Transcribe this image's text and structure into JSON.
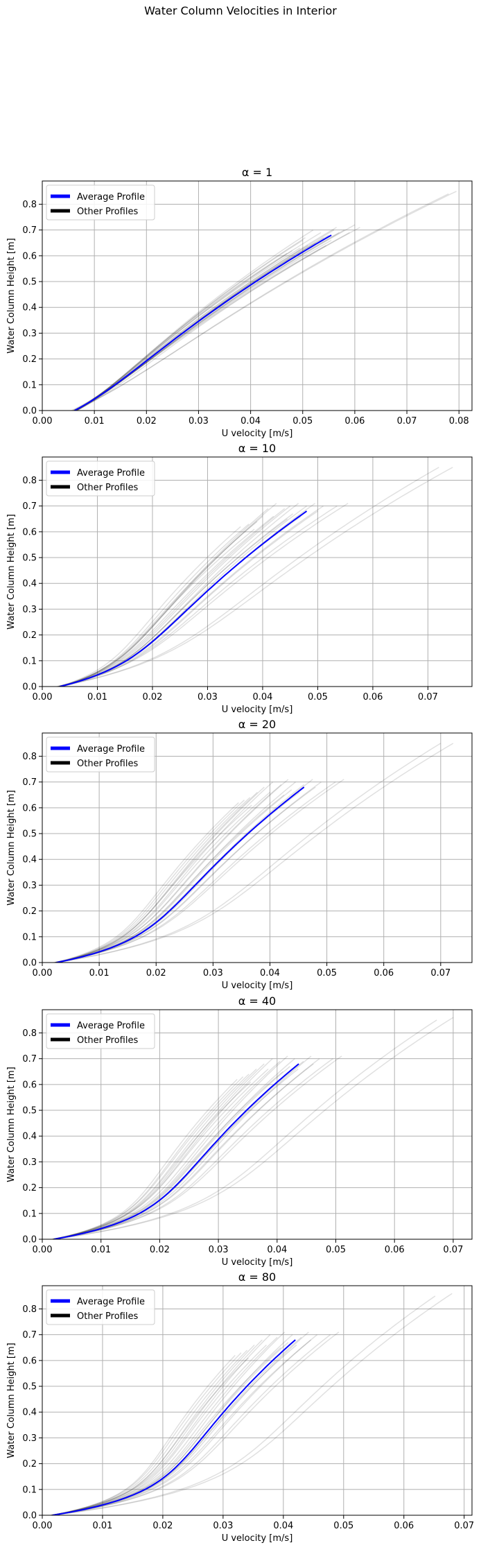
{
  "figure": {
    "suptitle": "Water Column Velocities in Interior"
  },
  "colors": {
    "average": "#0000ff",
    "other": "#000000",
    "other_alpha": 0.12,
    "grid": "#b0b0b0"
  },
  "chart_data": [
    {
      "type": "line",
      "title": "α = 1",
      "xlabel": "U velocity [m/s]",
      "ylabel": "Water Column Height [m]",
      "xlim": [
        0,
        0.0825
      ],
      "ylim": [
        0,
        0.89
      ],
      "xticks": [
        "0.00",
        "0.01",
        "0.02",
        "0.03",
        "0.04",
        "0.05",
        "0.06",
        "0.07",
        "0.08"
      ],
      "yticks": [
        "0.0",
        "0.1",
        "0.2",
        "0.3",
        "0.4",
        "0.5",
        "0.6",
        "0.7",
        "0.8"
      ],
      "grid": true,
      "legend": {
        "position": "upper-left",
        "entries": [
          "Average Profile",
          "Other Profiles"
        ]
      },
      "average_profile": {
        "name": "Average Profile",
        "bottom_velocity": 0.0062,
        "top_velocity": 0.0555,
        "top_height": 0.68,
        "shape": 0.2
      },
      "other_profiles": [
        {
          "bottom_velocity": 0.0058,
          "top_velocity": 0.0795,
          "top_height": 0.85
        },
        {
          "bottom_velocity": 0.006,
          "top_velocity": 0.078,
          "top_height": 0.84
        },
        {
          "bottom_velocity": 0.0056,
          "top_velocity": 0.061,
          "top_height": 0.71
        },
        {
          "bottom_velocity": 0.006,
          "top_velocity": 0.06,
          "top_height": 0.72
        },
        {
          "bottom_velocity": 0.0062,
          "top_velocity": 0.058,
          "top_height": 0.7
        },
        {
          "bottom_velocity": 0.0064,
          "top_velocity": 0.057,
          "top_height": 0.69
        },
        {
          "bottom_velocity": 0.0066,
          "top_velocity": 0.056,
          "top_height": 0.7
        },
        {
          "bottom_velocity": 0.0062,
          "top_velocity": 0.055,
          "top_height": 0.68
        },
        {
          "bottom_velocity": 0.0064,
          "top_velocity": 0.054,
          "top_height": 0.67
        },
        {
          "bottom_velocity": 0.0066,
          "top_velocity": 0.0525,
          "top_height": 0.65
        },
        {
          "bottom_velocity": 0.0064,
          "top_velocity": 0.051,
          "top_height": 0.64
        },
        {
          "bottom_velocity": 0.0062,
          "top_velocity": 0.0495,
          "top_height": 0.63
        },
        {
          "bottom_velocity": 0.0066,
          "top_velocity": 0.048,
          "top_height": 0.62
        },
        {
          "bottom_velocity": 0.0064,
          "top_velocity": 0.047,
          "top_height": 0.61
        },
        {
          "bottom_velocity": 0.0062,
          "top_velocity": 0.0555,
          "top_height": 0.66
        },
        {
          "bottom_velocity": 0.006,
          "top_velocity": 0.0565,
          "top_height": 0.71
        },
        {
          "bottom_velocity": 0.0062,
          "top_velocity": 0.0535,
          "top_height": 0.69
        },
        {
          "bottom_velocity": 0.0064,
          "top_velocity": 0.05,
          "top_height": 0.66
        },
        {
          "bottom_velocity": 0.0066,
          "top_velocity": 0.059,
          "top_height": 0.69
        },
        {
          "bottom_velocity": 0.0062,
          "top_velocity": 0.0545,
          "top_height": 0.64
        },
        {
          "bottom_velocity": 0.0064,
          "top_velocity": 0.052,
          "top_height": 0.7
        },
        {
          "bottom_velocity": 0.0066,
          "top_velocity": 0.0505,
          "top_height": 0.67
        }
      ]
    },
    {
      "type": "line",
      "title": "α = 10",
      "xlabel": "U velocity [m/s]",
      "ylabel": "Water Column Height [m]",
      "xlim": [
        0,
        0.078
      ],
      "ylim": [
        0,
        0.89
      ],
      "xticks": [
        "0.00",
        "0.01",
        "0.02",
        "0.03",
        "0.04",
        "0.05",
        "0.06",
        "0.07"
      ],
      "yticks": [
        "0.0",
        "0.1",
        "0.2",
        "0.3",
        "0.4",
        "0.5",
        "0.6",
        "0.7",
        "0.8"
      ],
      "grid": true,
      "legend": {
        "position": "upper-left",
        "entries": [
          "Average Profile",
          "Other Profiles"
        ]
      },
      "average_profile": {
        "name": "Average Profile",
        "bottom_velocity": 0.0032,
        "top_velocity": 0.048,
        "top_height": 0.68,
        "shape": 0.9
      },
      "other_profiles": [
        {
          "bottom_velocity": 0.0028,
          "top_velocity": 0.0745,
          "top_height": 0.85
        },
        {
          "bottom_velocity": 0.003,
          "top_velocity": 0.072,
          "top_height": 0.85
        },
        {
          "bottom_velocity": 0.0026,
          "top_velocity": 0.0555,
          "top_height": 0.71
        },
        {
          "bottom_velocity": 0.0028,
          "top_velocity": 0.0535,
          "top_height": 0.7
        },
        {
          "bottom_velocity": 0.003,
          "top_velocity": 0.051,
          "top_height": 0.7
        },
        {
          "bottom_velocity": 0.0032,
          "top_velocity": 0.0495,
          "top_height": 0.71
        },
        {
          "bottom_velocity": 0.0034,
          "top_velocity": 0.048,
          "top_height": 0.7
        },
        {
          "bottom_velocity": 0.0036,
          "top_velocity": 0.0465,
          "top_height": 0.71
        },
        {
          "bottom_velocity": 0.0034,
          "top_velocity": 0.045,
          "top_height": 0.7
        },
        {
          "bottom_velocity": 0.0032,
          "top_velocity": 0.044,
          "top_height": 0.69
        },
        {
          "bottom_velocity": 0.003,
          "top_velocity": 0.0425,
          "top_height": 0.71
        },
        {
          "bottom_velocity": 0.0034,
          "top_velocity": 0.041,
          "top_height": 0.69
        },
        {
          "bottom_velocity": 0.0036,
          "top_velocity": 0.04,
          "top_height": 0.66
        },
        {
          "bottom_velocity": 0.0032,
          "top_velocity": 0.039,
          "top_height": 0.64
        },
        {
          "bottom_velocity": 0.0034,
          "top_velocity": 0.0375,
          "top_height": 0.63
        },
        {
          "bottom_velocity": 0.003,
          "top_velocity": 0.036,
          "top_height": 0.62
        },
        {
          "bottom_velocity": 0.0032,
          "top_velocity": 0.042,
          "top_height": 0.66
        },
        {
          "bottom_velocity": 0.0034,
          "top_velocity": 0.0455,
          "top_height": 0.67
        },
        {
          "bottom_velocity": 0.0036,
          "top_velocity": 0.05,
          "top_height": 0.68
        },
        {
          "bottom_velocity": 0.003,
          "top_velocity": 0.047,
          "top_height": 0.66
        },
        {
          "bottom_velocity": 0.0032,
          "top_velocity": 0.0385,
          "top_height": 0.61
        },
        {
          "bottom_velocity": 0.0034,
          "top_velocity": 0.0445,
          "top_height": 0.65
        }
      ]
    },
    {
      "type": "line",
      "title": "α = 20",
      "xlabel": "U velocity [m/s]",
      "ylabel": "Water Column Height [m]",
      "xlim": [
        0,
        0.0755
      ],
      "ylim": [
        0,
        0.89
      ],
      "xticks": [
        "0.00",
        "0.01",
        "0.02",
        "0.03",
        "0.04",
        "0.05",
        "0.06",
        "0.07"
      ],
      "yticks": [
        "0.0",
        "0.1",
        "0.2",
        "0.3",
        "0.4",
        "0.5",
        "0.6",
        "0.7",
        "0.8"
      ],
      "grid": true,
      "legend": {
        "position": "upper-left",
        "entries": [
          "Average Profile",
          "Other Profiles"
        ]
      },
      "average_profile": {
        "name": "Average Profile",
        "bottom_velocity": 0.0025,
        "top_velocity": 0.046,
        "top_height": 0.68,
        "shape": 1.2
      },
      "other_profiles": [
        {
          "bottom_velocity": 0.0022,
          "top_velocity": 0.0722,
          "top_height": 0.85
        },
        {
          "bottom_velocity": 0.0024,
          "top_velocity": 0.07,
          "top_height": 0.85
        },
        {
          "bottom_velocity": 0.002,
          "top_velocity": 0.053,
          "top_height": 0.71
        },
        {
          "bottom_velocity": 0.0022,
          "top_velocity": 0.0515,
          "top_height": 0.7
        },
        {
          "bottom_velocity": 0.0024,
          "top_velocity": 0.049,
          "top_height": 0.7
        },
        {
          "bottom_velocity": 0.0026,
          "top_velocity": 0.0475,
          "top_height": 0.71
        },
        {
          "bottom_velocity": 0.0028,
          "top_velocity": 0.046,
          "top_height": 0.69
        },
        {
          "bottom_velocity": 0.0026,
          "top_velocity": 0.0445,
          "top_height": 0.7
        },
        {
          "bottom_velocity": 0.0024,
          "top_velocity": 0.0432,
          "top_height": 0.71
        },
        {
          "bottom_velocity": 0.0028,
          "top_velocity": 0.042,
          "top_height": 0.69
        },
        {
          "bottom_velocity": 0.0026,
          "top_velocity": 0.0405,
          "top_height": 0.7
        },
        {
          "bottom_velocity": 0.0024,
          "top_velocity": 0.039,
          "top_height": 0.68
        },
        {
          "bottom_velocity": 0.0028,
          "top_velocity": 0.0378,
          "top_height": 0.66
        },
        {
          "bottom_velocity": 0.0026,
          "top_velocity": 0.0365,
          "top_height": 0.64
        },
        {
          "bottom_velocity": 0.0024,
          "top_velocity": 0.0355,
          "top_height": 0.63
        },
        {
          "bottom_velocity": 0.0022,
          "top_velocity": 0.0345,
          "top_height": 0.62
        },
        {
          "bottom_velocity": 0.0026,
          "top_velocity": 0.04,
          "top_height": 0.66
        },
        {
          "bottom_velocity": 0.0028,
          "top_velocity": 0.0438,
          "top_height": 0.67
        },
        {
          "bottom_velocity": 0.0024,
          "top_velocity": 0.048,
          "top_height": 0.68
        },
        {
          "bottom_velocity": 0.0022,
          "top_velocity": 0.0452,
          "top_height": 0.66
        },
        {
          "bottom_velocity": 0.0026,
          "top_velocity": 0.0368,
          "top_height": 0.61
        },
        {
          "bottom_velocity": 0.0028,
          "top_velocity": 0.0425,
          "top_height": 0.65
        }
      ]
    },
    {
      "type": "line",
      "title": "α = 40",
      "xlabel": "U velocity [m/s]",
      "ylabel": "Water Column Height [m]",
      "xlim": [
        0,
        0.0732
      ],
      "ylim": [
        0,
        0.89
      ],
      "xticks": [
        "0.00",
        "0.01",
        "0.02",
        "0.03",
        "0.04",
        "0.05",
        "0.06",
        "0.07"
      ],
      "yticks": [
        "0.0",
        "0.1",
        "0.2",
        "0.3",
        "0.4",
        "0.5",
        "0.6",
        "0.7",
        "0.8"
      ],
      "grid": true,
      "legend": {
        "position": "upper-left",
        "entries": [
          "Average Profile",
          "Other Profiles"
        ]
      },
      "average_profile": {
        "name": "Average Profile",
        "bottom_velocity": 0.002,
        "top_velocity": 0.0437,
        "top_height": 0.68,
        "shape": 1.4
      },
      "other_profiles": [
        {
          "bottom_velocity": 0.0018,
          "top_velocity": 0.07,
          "top_height": 0.86
        },
        {
          "bottom_velocity": 0.002,
          "top_velocity": 0.0672,
          "top_height": 0.85
        },
        {
          "bottom_velocity": 0.0016,
          "top_velocity": 0.051,
          "top_height": 0.71
        },
        {
          "bottom_velocity": 0.0018,
          "top_velocity": 0.0495,
          "top_height": 0.7
        },
        {
          "bottom_velocity": 0.002,
          "top_velocity": 0.0472,
          "top_height": 0.7
        },
        {
          "bottom_velocity": 0.0022,
          "top_velocity": 0.0458,
          "top_height": 0.71
        },
        {
          "bottom_velocity": 0.002,
          "top_velocity": 0.0445,
          "top_height": 0.69
        },
        {
          "bottom_velocity": 0.0018,
          "top_velocity": 0.043,
          "top_height": 0.7
        },
        {
          "bottom_velocity": 0.0022,
          "top_velocity": 0.0418,
          "top_height": 0.71
        },
        {
          "bottom_velocity": 0.002,
          "top_velocity": 0.0405,
          "top_height": 0.69
        },
        {
          "bottom_velocity": 0.0018,
          "top_velocity": 0.0392,
          "top_height": 0.7
        },
        {
          "bottom_velocity": 0.0022,
          "top_velocity": 0.0378,
          "top_height": 0.68
        },
        {
          "bottom_velocity": 0.002,
          "top_velocity": 0.0365,
          "top_height": 0.66
        },
        {
          "bottom_velocity": 0.0018,
          "top_velocity": 0.0352,
          "top_height": 0.64
        },
        {
          "bottom_velocity": 0.0022,
          "top_velocity": 0.0342,
          "top_height": 0.63
        },
        {
          "bottom_velocity": 0.002,
          "top_velocity": 0.0332,
          "top_height": 0.62
        },
        {
          "bottom_velocity": 0.0018,
          "top_velocity": 0.0385,
          "top_height": 0.66
        },
        {
          "bottom_velocity": 0.0022,
          "top_velocity": 0.0422,
          "top_height": 0.67
        },
        {
          "bottom_velocity": 0.002,
          "top_velocity": 0.0462,
          "top_height": 0.68
        },
        {
          "bottom_velocity": 0.0018,
          "top_velocity": 0.0436,
          "top_height": 0.66
        },
        {
          "bottom_velocity": 0.0022,
          "top_velocity": 0.0355,
          "top_height": 0.61
        },
        {
          "bottom_velocity": 0.002,
          "top_velocity": 0.041,
          "top_height": 0.65
        }
      ]
    },
    {
      "type": "line",
      "title": "α = 80",
      "xlabel": "U velocity [m/s]",
      "ylabel": "Water Column Height [m]",
      "xlim": [
        0,
        0.0713
      ],
      "ylim": [
        0,
        0.89
      ],
      "xticks": [
        "0.00",
        "0.01",
        "0.02",
        "0.03",
        "0.04",
        "0.05",
        "0.06",
        "0.07"
      ],
      "yticks": [
        "0.0",
        "0.1",
        "0.2",
        "0.3",
        "0.4",
        "0.5",
        "0.6",
        "0.7",
        "0.8"
      ],
      "grid": true,
      "legend": {
        "position": "upper-left",
        "entries": [
          "Average Profile",
          "Other Profiles"
        ]
      },
      "average_profile": {
        "name": "Average Profile",
        "bottom_velocity": 0.0017,
        "top_velocity": 0.042,
        "top_height": 0.68,
        "shape": 1.6
      },
      "other_profiles": [
        {
          "bottom_velocity": 0.0015,
          "top_velocity": 0.068,
          "top_height": 0.86
        },
        {
          "bottom_velocity": 0.0017,
          "top_velocity": 0.0652,
          "top_height": 0.85
        },
        {
          "bottom_velocity": 0.0014,
          "top_velocity": 0.0492,
          "top_height": 0.71
        },
        {
          "bottom_velocity": 0.0016,
          "top_velocity": 0.0478,
          "top_height": 0.7
        },
        {
          "bottom_velocity": 0.0018,
          "top_velocity": 0.0456,
          "top_height": 0.7
        },
        {
          "bottom_velocity": 0.0016,
          "top_velocity": 0.0442,
          "top_height": 0.71
        },
        {
          "bottom_velocity": 0.0015,
          "top_velocity": 0.043,
          "top_height": 0.69
        },
        {
          "bottom_velocity": 0.0017,
          "top_velocity": 0.0415,
          "top_height": 0.7
        },
        {
          "bottom_velocity": 0.0018,
          "top_velocity": 0.0402,
          "top_height": 0.71
        },
        {
          "bottom_velocity": 0.0016,
          "top_velocity": 0.039,
          "top_height": 0.69
        },
        {
          "bottom_velocity": 0.0015,
          "top_velocity": 0.0378,
          "top_height": 0.7
        },
        {
          "bottom_velocity": 0.0017,
          "top_velocity": 0.0365,
          "top_height": 0.68
        },
        {
          "bottom_velocity": 0.0018,
          "top_velocity": 0.0352,
          "top_height": 0.66
        },
        {
          "bottom_velocity": 0.0016,
          "top_velocity": 0.034,
          "top_height": 0.64
        },
        {
          "bottom_velocity": 0.0015,
          "top_velocity": 0.033,
          "top_height": 0.63
        },
        {
          "bottom_velocity": 0.0017,
          "top_velocity": 0.032,
          "top_height": 0.62
        },
        {
          "bottom_velocity": 0.0018,
          "top_velocity": 0.0372,
          "top_height": 0.66
        },
        {
          "bottom_velocity": 0.0016,
          "top_velocity": 0.0408,
          "top_height": 0.67
        },
        {
          "bottom_velocity": 0.0015,
          "top_velocity": 0.0446,
          "top_height": 0.68
        },
        {
          "bottom_velocity": 0.0017,
          "top_velocity": 0.0422,
          "top_height": 0.66
        },
        {
          "bottom_velocity": 0.0018,
          "top_velocity": 0.0342,
          "top_height": 0.61
        },
        {
          "bottom_velocity": 0.0016,
          "top_velocity": 0.0396,
          "top_height": 0.65
        }
      ]
    }
  ]
}
